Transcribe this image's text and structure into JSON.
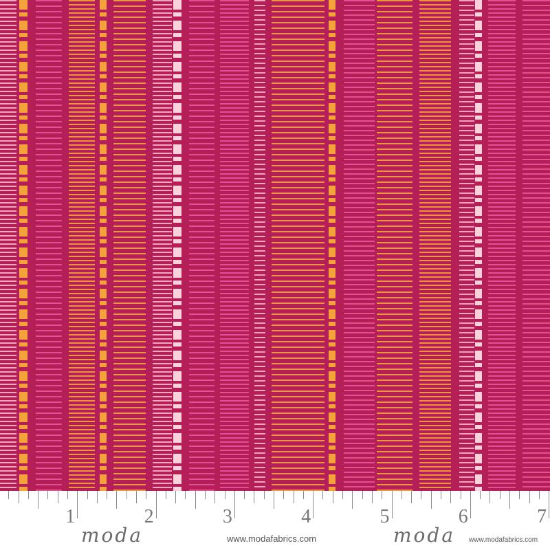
{
  "colors": {
    "ground": "#b51f58",
    "orange": "#f4a33a",
    "pale_pink": "#f6b6c8",
    "pink": "#e8559e",
    "white_block": "#f9d2dc"
  },
  "ruler": {
    "labels": [
      "1",
      "2",
      "3",
      "4",
      "5",
      "6",
      "7"
    ]
  },
  "brand": {
    "logo_text": "moda",
    "url": "www.modafabrics.com"
  }
}
